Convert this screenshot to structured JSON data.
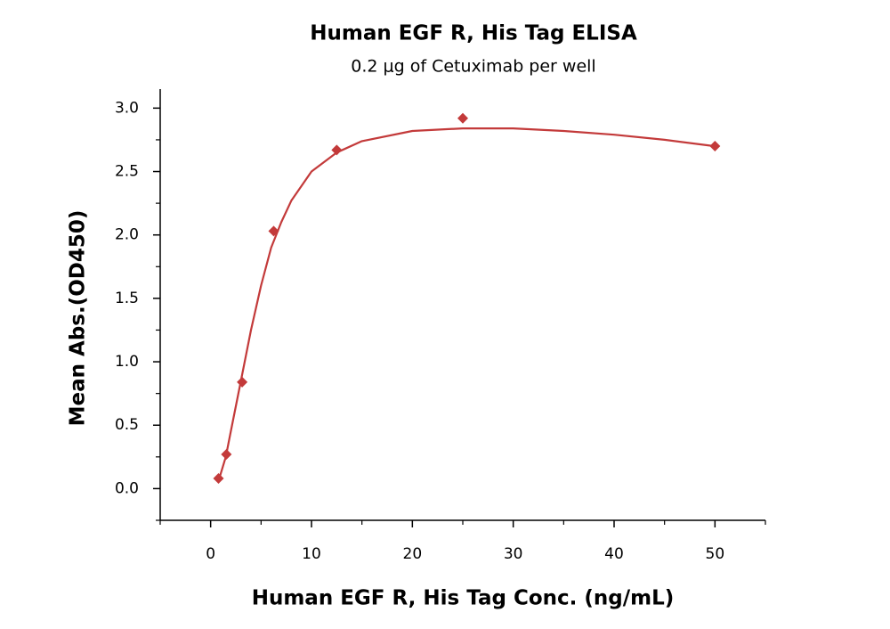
{
  "chart_data": {
    "type": "scatter",
    "title": "Human EGF R, His Tag ELISA",
    "subtitle": "0.2 μg of Cetuximab per well",
    "x_label": "Human EGF R, His Tag Conc. (ng/mL)",
    "y_label": "Mean Abs.(OD450)",
    "x": [
      0.78,
      1.56,
      3.125,
      6.25,
      12.5,
      25,
      50
    ],
    "values": [
      0.08,
      0.27,
      0.84,
      2.03,
      2.67,
      2.92,
      2.7
    ],
    "color": "#c33a3a",
    "fit_curve": {
      "x": [
        0.78,
        1.5,
        2,
        3,
        4,
        5,
        6,
        7,
        8,
        10,
        12.5,
        15,
        20,
        25,
        30,
        35,
        40,
        45,
        50
      ],
      "values": [
        0.06,
        0.25,
        0.45,
        0.85,
        1.25,
        1.6,
        1.9,
        2.1,
        2.27,
        2.5,
        2.65,
        2.74,
        2.82,
        2.84,
        2.84,
        2.82,
        2.79,
        2.75,
        2.7
      ],
      "color": "#c33a3a"
    },
    "xlim": [
      -5,
      55
    ],
    "ylim": [
      -0.25,
      3.15
    ],
    "xticks": [
      0,
      10,
      20,
      30,
      40,
      50
    ],
    "xminorticks": [
      -5,
      5,
      15,
      25,
      35,
      45,
      55
    ],
    "yticks": [
      {
        "value": 0,
        "label": "0.0"
      },
      {
        "value": 0.5,
        "label": "0.5"
      },
      {
        "value": 1,
        "label": "1.0"
      },
      {
        "value": 1.5,
        "label": "1.5"
      },
      {
        "value": 2,
        "label": "2.0"
      },
      {
        "value": 2.5,
        "label": "2.5"
      },
      {
        "value": 3,
        "label": "3.0"
      }
    ],
    "yminorticks": [
      -0.25,
      0.25,
      0.75,
      1.25,
      1.75,
      2.25,
      2.75
    ]
  }
}
